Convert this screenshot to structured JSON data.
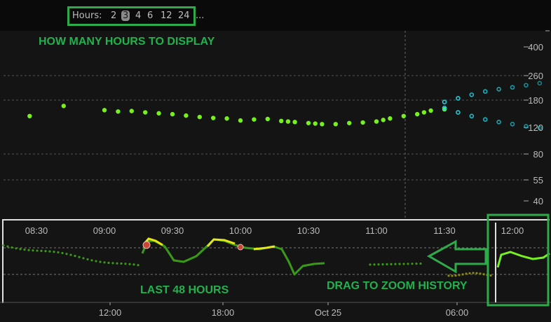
{
  "toolbar": {
    "hours_label": "Hours:",
    "hour_options": [
      "2",
      "3",
      "4",
      "6",
      "12",
      "24"
    ],
    "selected_hours": "3",
    "more": "..."
  },
  "annotations": {
    "hours_hint": "HOW MANY HOURS TO DISPLAY",
    "history_hint": "LAST 48 HOURS",
    "drag_hint": "DRAG TO ZOOM HISTORY"
  },
  "main_chart": {
    "y_ticks": [
      "400",
      "260",
      "180",
      "120",
      "80",
      "55",
      "40"
    ],
    "x_ticks": [
      "08:30",
      "09:00",
      "09:30",
      "10:00",
      "10:30",
      "11:00",
      "11:30",
      "12:00"
    ],
    "readings": [
      [
        8.2,
        105
      ],
      [
        8.45,
        142
      ],
      [
        8.7,
        165
      ],
      [
        9.0,
        155
      ],
      [
        9.1,
        152
      ],
      [
        9.2,
        153
      ],
      [
        9.3,
        150
      ],
      [
        9.4,
        148
      ],
      [
        9.5,
        146
      ],
      [
        9.6,
        143
      ],
      [
        9.7,
        140
      ],
      [
        9.8,
        138
      ],
      [
        9.9,
        137
      ],
      [
        10.0,
        133
      ],
      [
        10.1,
        135
      ],
      [
        10.2,
        136
      ],
      [
        10.3,
        132
      ],
      [
        10.35,
        131
      ],
      [
        10.4,
        130
      ],
      [
        10.5,
        128
      ],
      [
        10.55,
        127
      ],
      [
        10.6,
        126
      ],
      [
        10.7,
        126
      ],
      [
        10.8,
        128
      ],
      [
        10.9,
        129
      ],
      [
        11.0,
        131
      ],
      [
        11.05,
        134
      ],
      [
        11.1,
        137
      ],
      [
        11.2,
        142
      ],
      [
        11.3,
        146
      ],
      [
        11.35,
        150
      ],
      [
        11.4,
        154
      ],
      [
        11.5,
        157
      ]
    ],
    "forecast_high": [
      [
        11.5,
        175
      ],
      [
        11.6,
        185
      ],
      [
        11.7,
        195
      ],
      [
        11.8,
        205
      ],
      [
        11.9,
        212
      ],
      [
        12.0,
        218
      ],
      [
        12.1,
        225
      ],
      [
        12.2,
        232
      ],
      [
        12.3,
        236
      ],
      [
        12.4,
        240
      ]
    ],
    "forecast_low": [
      [
        11.5,
        160
      ],
      [
        11.6,
        150
      ],
      [
        11.7,
        142
      ],
      [
        11.8,
        135
      ],
      [
        11.9,
        130
      ],
      [
        12.0,
        126
      ],
      [
        12.1,
        122
      ],
      [
        12.2,
        119
      ],
      [
        12.3,
        116
      ],
      [
        12.4,
        115
      ]
    ],
    "colors": {
      "reading": "#76f01e",
      "forecast": "#19d3e6",
      "grid": "#555555"
    }
  },
  "history_chart": {
    "x_ticks": [
      "12:00",
      "18:00",
      "Oct 25",
      "06:00"
    ],
    "colors": {
      "in_range": "#3a9a18",
      "high": "#e6e619",
      "highlight": "#cc4433"
    }
  }
}
